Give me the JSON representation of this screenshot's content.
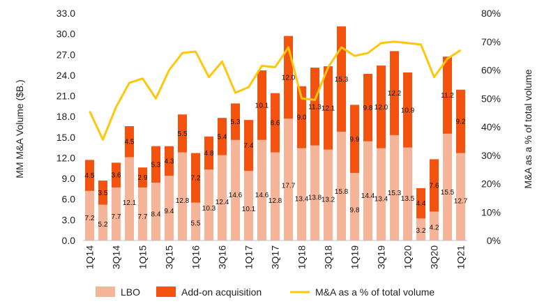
{
  "chart_data": {
    "type": "bar",
    "stacked": true,
    "categories": [
      "1Q14",
      "2Q14",
      "3Q14",
      "4Q14",
      "1Q15",
      "2Q15",
      "3Q15",
      "4Q15",
      "1Q16",
      "2Q16",
      "3Q16",
      "4Q16",
      "1Q17",
      "2Q17",
      "3Q17",
      "4Q17",
      "1Q18",
      "2Q18",
      "3Q18",
      "4Q18",
      "1Q19",
      "2Q19",
      "3Q19",
      "4Q19",
      "1Q20",
      "2Q20",
      "3Q20",
      "4Q20",
      "1Q21"
    ],
    "tick_labels": [
      "1Q14",
      "3Q14",
      "1Q15",
      "3Q15",
      "1Q16",
      "3Q16",
      "1Q17",
      "3Q17",
      "1Q18",
      "3Q18",
      "1Q19",
      "3Q19",
      "1Q20",
      "3Q20",
      "1Q21"
    ],
    "series": [
      {
        "name": "LBO",
        "color": "#f6b598",
        "values": [
          7.2,
          5.2,
          7.7,
          12.1,
          7.7,
          8.4,
          9.4,
          12.8,
          5.5,
          10.3,
          12.4,
          14.6,
          10.1,
          14.6,
          12.8,
          17.7,
          13.4,
          13.8,
          13.2,
          15.8,
          9.8,
          14.4,
          13.4,
          15.3,
          13.5,
          3.2,
          4.2,
          15.5,
          12.7
        ]
      },
      {
        "name": "Add-on acquisition",
        "color": "#f4520f",
        "values": [
          4.5,
          3.5,
          3.6,
          4.5,
          2.9,
          5.3,
          4.3,
          5.5,
          7.2,
          4.8,
          5.4,
          5.3,
          7.4,
          10.1,
          8.6,
          12.0,
          9.0,
          11.3,
          12.1,
          15.3,
          9.9,
          9.8,
          12.0,
          12.2,
          10.9,
          4.4,
          7.6,
          11.2,
          9.2
        ]
      },
      {
        "name": "M&A as a % of total volume",
        "type": "line",
        "color": "#ffc60a",
        "axis": "right",
        "values": [
          45.5,
          35.5,
          47,
          55.5,
          57,
          50,
          60,
          66,
          66.5,
          57.5,
          63,
          52,
          54,
          61.5,
          61,
          68,
          50,
          49.5,
          61,
          68,
          65,
          66,
          69.5,
          70,
          69.5,
          69,
          57.5,
          64,
          67
        ]
      }
    ],
    "ylabel": "MM M&A Volume ($B.)",
    "y2label": "M&A as a % of total volume",
    "ylim": [
      0,
      33
    ],
    "y_ticks": [
      "0.0",
      "3.0",
      "6.0",
      "9.0",
      "12.0",
      "15.0",
      "18.0",
      "21.0",
      "24.0",
      "27.0",
      "30.0",
      "33.0"
    ],
    "y2lim": [
      0,
      80
    ],
    "y2_ticks": [
      "0%",
      "10%",
      "20%",
      "30%",
      "40%",
      "50%",
      "60%",
      "70%",
      "80%"
    ],
    "grid": false,
    "legend": "bottom"
  }
}
